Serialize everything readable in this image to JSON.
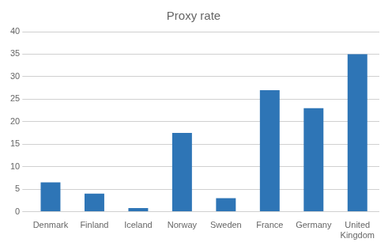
{
  "chart_data": {
    "type": "bar",
    "title": "Proxy rate",
    "categories": [
      "Denmark",
      "Finland",
      "Iceland",
      "Norway",
      "Sweden",
      "France",
      "Germany",
      "United\nKingdom"
    ],
    "values": [
      6.5,
      4.0,
      0.8,
      17.5,
      3.0,
      27.0,
      23.0,
      35.0
    ],
    "color": "#2E75B6",
    "ylim": [
      0,
      40
    ],
    "yticks": [
      0,
      5,
      10,
      15,
      20,
      25,
      30,
      35,
      40
    ],
    "grid": true
  }
}
